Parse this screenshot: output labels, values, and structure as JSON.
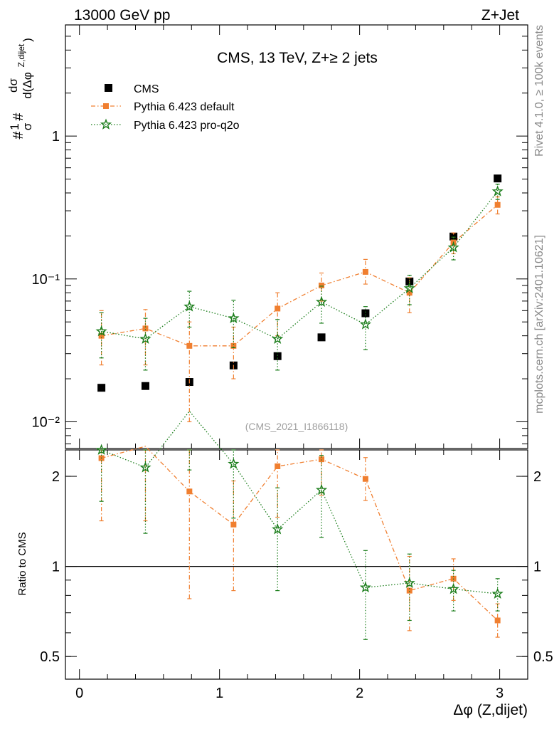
{
  "header": {
    "left": "13000 GeV pp",
    "right": "Z+Jet"
  },
  "side_labels": {
    "rivet": "Rivet 4.1.0, ≥ 100k events",
    "source": "mcplots.cern.ch [arXiv:2401.10621]"
  },
  "analysis_id": "(CMS_2021_I1866118)",
  "chart_data": [
    {
      "type": "scatter",
      "panel": "main",
      "title": "CMS, 13 TeV, Z+≥ 2 jets",
      "ylabel": "1/σ dσ/d(Δφ Z,dijet)",
      "yscale": "log",
      "ylim": [
        0.0065,
        6
      ],
      "xlim": [
        -0.1,
        3.2
      ],
      "y_ticks": [
        {
          "value": 1,
          "label": "1"
        },
        {
          "value": 0.1,
          "label": "10⁻¹"
        },
        {
          "value": 0.01,
          "label": "10⁻²"
        }
      ],
      "x": [
        0.157,
        0.471,
        0.785,
        1.1,
        1.414,
        1.728,
        2.042,
        2.356,
        2.67,
        2.985
      ],
      "series": [
        {
          "name": "CMS",
          "color": "#000000",
          "marker": "square",
          "line": "none",
          "values": [
            0.0173,
            0.0178,
            0.019,
            0.0248,
            0.0288,
            0.039,
            0.0575,
            0.096,
            0.198,
            0.505
          ]
        },
        {
          "name": "Pythia 6.423 default",
          "color": "#f07f30",
          "marker": "square",
          "line": "dashdot",
          "values": [
            0.04,
            0.045,
            0.034,
            0.034,
            0.062,
            0.09,
            0.112,
            0.08,
            0.18,
            0.33
          ],
          "err_low": [
            0.015,
            0.02,
            0.024,
            0.014,
            0.022,
            0.02,
            0.02,
            0.022,
            0.03,
            0.045
          ],
          "err_high": [
            0.02,
            0.016,
            0.016,
            0.012,
            0.018,
            0.02,
            0.025,
            0.022,
            0.03,
            0.045
          ]
        },
        {
          "name": "Pythia 6.423 pro-q2o",
          "color": "#1a7d1a",
          "marker": "star",
          "line": "dotted",
          "values": [
            0.043,
            0.038,
            0.064,
            0.053,
            0.038,
            0.069,
            0.048,
            0.086,
            0.166,
            0.41
          ],
          "err_low": [
            0.015,
            0.015,
            0.018,
            0.02,
            0.015,
            0.02,
            0.016,
            0.02,
            0.03,
            0.05
          ],
          "err_high": [
            0.015,
            0.015,
            0.018,
            0.018,
            0.014,
            0.02,
            0.016,
            0.02,
            0.03,
            0.05
          ]
        }
      ]
    },
    {
      "type": "line",
      "panel": "ratio",
      "ylabel": "Ratio to CMS",
      "xlabel": "Δφ (Z,dijet)",
      "yscale": "log",
      "ylim": [
        0.42,
        2.45
      ],
      "xlim": [
        -0.1,
        3.2
      ],
      "reference": 1,
      "y_ticks": [
        {
          "value": 2,
          "label": "2"
        },
        {
          "value": 1,
          "label": "1"
        },
        {
          "value": 0.5,
          "label": "0.5"
        }
      ],
      "x_ticks": [
        {
          "value": 0,
          "label": "0"
        },
        {
          "value": 1,
          "label": "1"
        },
        {
          "value": 2,
          "label": "2"
        },
        {
          "value": 3,
          "label": "3"
        }
      ],
      "x": [
        0.157,
        0.471,
        0.785,
        1.1,
        1.414,
        1.728,
        2.042,
        2.356,
        2.67,
        2.985
      ],
      "series": [
        {
          "name": "Pythia 6.423 default",
          "color": "#f07f30",
          "marker": "square",
          "line": "dashdot",
          "values": [
            2.3,
            2.52,
            1.78,
            1.38,
            2.16,
            2.28,
            1.96,
            0.83,
            0.91,
            0.66
          ],
          "err_low": [
            0.88,
            1.1,
            1.0,
            0.55,
            0.7,
            0.55,
            0.3,
            0.22,
            0.14,
            0.08
          ],
          "err_high": [
            0.9,
            1.1,
            1.0,
            0.55,
            0.7,
            0.6,
            0.35,
            0.25,
            0.15,
            0.09
          ]
        },
        {
          "name": "Pythia 6.423 pro-q2o",
          "color": "#1a7d1a",
          "marker": "star",
          "line": "dotted",
          "values": [
            2.45,
            2.14,
            3.3,
            2.2,
            1.33,
            1.8,
            0.85,
            0.88,
            0.84,
            0.81
          ],
          "err_low": [
            0.8,
            0.85,
            1.2,
            0.75,
            0.5,
            0.55,
            0.28,
            0.22,
            0.13,
            0.1
          ],
          "err_high": [
            0.8,
            0.85,
            1.2,
            0.75,
            0.5,
            0.55,
            0.28,
            0.22,
            0.13,
            0.1
          ]
        }
      ]
    }
  ]
}
